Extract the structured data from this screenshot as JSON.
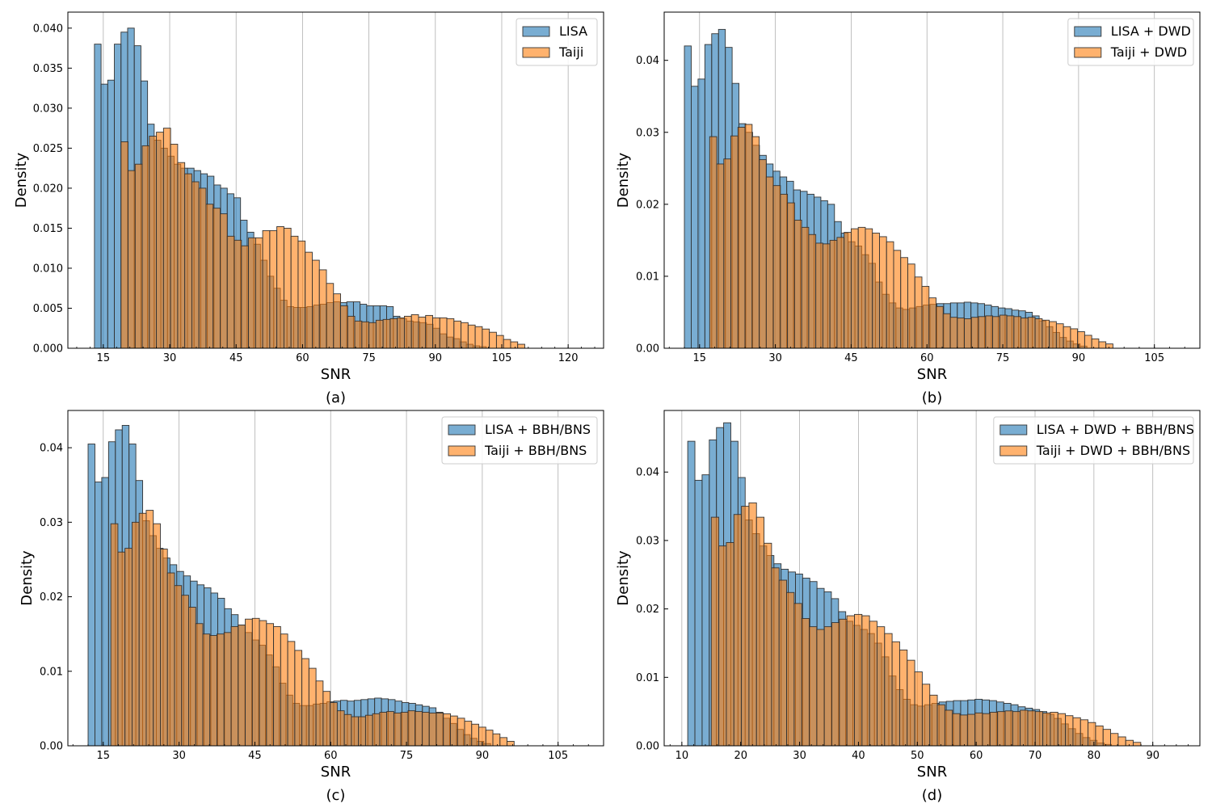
{
  "figure": {
    "series_colors": {
      "lisa": "#1f77b4",
      "taiji": "#ff7f0e",
      "bar_edge": "#333333",
      "grid": "#b0b0b0"
    }
  },
  "chart_data": [
    {
      "type": "histogram",
      "caption": "(a)",
      "xlabel": "SNR",
      "ylabel": "Density",
      "xlim": [
        7,
        128
      ],
      "ylim": [
        0,
        0.042
      ],
      "xticks": [
        15,
        30,
        45,
        60,
        75,
        90,
        105,
        120
      ],
      "yticks": [
        0,
        0.005,
        0.01,
        0.015,
        0.02,
        0.025,
        0.03,
        0.035,
        0.04
      ],
      "ytick_decimals": 3,
      "grid": "vertical",
      "legend_position": "top-right",
      "series": [
        {
          "name": "LISA",
          "bin_start": 13,
          "bin_width": 1.5,
          "values": [
            0.038,
            0.033,
            0.0335,
            0.038,
            0.0395,
            0.04,
            0.0378,
            0.0334,
            0.028,
            0.026,
            0.025,
            0.024,
            0.023,
            0.0225,
            0.0225,
            0.0222,
            0.0218,
            0.0215,
            0.0204,
            0.02,
            0.0193,
            0.0188,
            0.016,
            0.0145,
            0.013,
            0.011,
            0.009,
            0.0075,
            0.006,
            0.0052,
            0.0051,
            0.0051,
            0.0052,
            0.0054,
            0.0055,
            0.0057,
            0.0058,
            0.0057,
            0.0058,
            0.0058,
            0.0055,
            0.0053,
            0.0053,
            0.0053,
            0.0052,
            0.004,
            0.0037,
            0.0034,
            0.0033,
            0.0032,
            0.003,
            0.0025,
            0.0018,
            0.0014,
            0.0012,
            0.0008,
            0.0005,
            0.0003,
            0.0002
          ]
        },
        {
          "name": "Taiji",
          "bin_start": 19,
          "bin_width": 1.6,
          "values": [
            0.0258,
            0.0222,
            0.023,
            0.0253,
            0.0265,
            0.027,
            0.0275,
            0.0255,
            0.0232,
            0.0218,
            0.0208,
            0.02,
            0.018,
            0.0175,
            0.0168,
            0.014,
            0.0135,
            0.0128,
            0.0138,
            0.0138,
            0.0147,
            0.0147,
            0.0152,
            0.015,
            0.014,
            0.0134,
            0.012,
            0.011,
            0.0098,
            0.0081,
            0.0068,
            0.0053,
            0.004,
            0.0034,
            0.0033,
            0.0032,
            0.0035,
            0.0036,
            0.0037,
            0.0038,
            0.004,
            0.0042,
            0.0039,
            0.0041,
            0.0038,
            0.0038,
            0.0037,
            0.0034,
            0.0032,
            0.0029,
            0.0027,
            0.0024,
            0.002,
            0.0016,
            0.0011,
            0.0008,
            0.0005
          ]
        }
      ]
    },
    {
      "type": "histogram",
      "caption": "(b)",
      "xlabel": "SNR",
      "ylabel": "Density",
      "xlim": [
        8,
        114
      ],
      "ylim": [
        0,
        0.0467
      ],
      "xticks": [
        15,
        30,
        45,
        60,
        75,
        90,
        105
      ],
      "yticks": [
        0,
        0.01,
        0.02,
        0.03,
        0.04
      ],
      "ytick_decimals": 2,
      "grid": "vertical",
      "legend_position": "top-right",
      "series": [
        {
          "name": "LISA + DWD",
          "bin_start": 12,
          "bin_width": 1.35,
          "values": [
            0.042,
            0.0364,
            0.0374,
            0.0422,
            0.0437,
            0.0443,
            0.0418,
            0.0368,
            0.0312,
            0.03,
            0.0282,
            0.0268,
            0.0256,
            0.0246,
            0.0238,
            0.0232,
            0.022,
            0.0218,
            0.0214,
            0.021,
            0.0205,
            0.02,
            0.0176,
            0.016,
            0.0148,
            0.0142,
            0.013,
            0.0118,
            0.0092,
            0.0075,
            0.0063,
            0.0056,
            0.0054,
            0.0056,
            0.0058,
            0.006,
            0.0061,
            0.0062,
            0.0062,
            0.0063,
            0.0063,
            0.0064,
            0.0063,
            0.0062,
            0.006,
            0.0058,
            0.0056,
            0.0055,
            0.0053,
            0.0052,
            0.005,
            0.0045,
            0.0038,
            0.003,
            0.0022,
            0.0015,
            0.001,
            0.0006,
            0.0003
          ]
        },
        {
          "name": "Taiji + DWD",
          "bin_start": 17,
          "bin_width": 1.4,
          "values": [
            0.0294,
            0.0256,
            0.0263,
            0.0295,
            0.0307,
            0.0311,
            0.0294,
            0.0262,
            0.0238,
            0.0226,
            0.0214,
            0.0202,
            0.0178,
            0.0168,
            0.0158,
            0.0146,
            0.0145,
            0.015,
            0.0154,
            0.0161,
            0.0166,
            0.0168,
            0.0166,
            0.016,
            0.0155,
            0.0148,
            0.0136,
            0.0126,
            0.0117,
            0.0099,
            0.0086,
            0.007,
            0.0058,
            0.0048,
            0.0043,
            0.0042,
            0.0041,
            0.0043,
            0.0044,
            0.0045,
            0.0044,
            0.0046,
            0.0045,
            0.0044,
            0.0042,
            0.0043,
            0.0041,
            0.0039,
            0.0037,
            0.0034,
            0.003,
            0.0027,
            0.0023,
            0.0018,
            0.0013,
            0.0009,
            0.0006
          ]
        }
      ]
    },
    {
      "type": "histogram",
      "caption": "(c)",
      "xlabel": "SNR",
      "ylabel": "Density",
      "xlim": [
        8,
        114
      ],
      "ylim": [
        0,
        0.045
      ],
      "xticks": [
        15,
        30,
        45,
        60,
        75,
        90,
        105
      ],
      "yticks": [
        0,
        0.01,
        0.02,
        0.03,
        0.04
      ],
      "ytick_decimals": 2,
      "grid": "vertical",
      "legend_position": "top-right",
      "series": [
        {
          "name": "LISA + BBH/BNS",
          "bin_start": 12,
          "bin_width": 1.35,
          "values": [
            0.0405,
            0.0354,
            0.036,
            0.0408,
            0.0424,
            0.043,
            0.0405,
            0.0356,
            0.0302,
            0.0282,
            0.0265,
            0.0252,
            0.0243,
            0.0234,
            0.0228,
            0.0221,
            0.0216,
            0.0212,
            0.0205,
            0.0198,
            0.0184,
            0.0176,
            0.0162,
            0.0152,
            0.0142,
            0.0135,
            0.0122,
            0.0106,
            0.0084,
            0.0068,
            0.0057,
            0.0054,
            0.0054,
            0.0056,
            0.0057,
            0.0059,
            0.006,
            0.0061,
            0.006,
            0.0061,
            0.0062,
            0.0063,
            0.0064,
            0.0063,
            0.0062,
            0.006,
            0.0058,
            0.0057,
            0.0055,
            0.0053,
            0.0051,
            0.0045,
            0.0037,
            0.003,
            0.0022,
            0.0015,
            0.001,
            0.0006,
            0.0003
          ]
        },
        {
          "name": "Taiji + BBH/BNS",
          "bin_start": 16.5,
          "bin_width": 1.4,
          "values": [
            0.0298,
            0.026,
            0.0265,
            0.03,
            0.0312,
            0.0316,
            0.0298,
            0.0264,
            0.0232,
            0.0215,
            0.0202,
            0.0186,
            0.0164,
            0.015,
            0.0148,
            0.015,
            0.0152,
            0.016,
            0.0162,
            0.017,
            0.0171,
            0.0168,
            0.0164,
            0.016,
            0.015,
            0.014,
            0.0128,
            0.0117,
            0.0104,
            0.0087,
            0.0073,
            0.0058,
            0.0047,
            0.0042,
            0.0039,
            0.0039,
            0.0041,
            0.0043,
            0.0045,
            0.0046,
            0.0044,
            0.0045,
            0.0047,
            0.0046,
            0.0045,
            0.0044,
            0.0044,
            0.0043,
            0.004,
            0.0037,
            0.0033,
            0.0029,
            0.0025,
            0.0021,
            0.0016,
            0.0011,
            0.0006
          ]
        }
      ]
    },
    {
      "type": "histogram",
      "caption": "(d)",
      "xlabel": "SNR",
      "ylabel": "Density",
      "xlim": [
        7,
        98
      ],
      "ylim": [
        0,
        0.049
      ],
      "xticks": [
        10,
        20,
        30,
        40,
        50,
        60,
        70,
        80,
        90
      ],
      "yticks": [
        0,
        0.01,
        0.02,
        0.03,
        0.04
      ],
      "ytick_decimals": 2,
      "grid": "vertical",
      "legend_position": "top-right",
      "series": [
        {
          "name": "LISA + DWD + BBH/BNS",
          "bin_start": 11,
          "bin_width": 1.22,
          "values": [
            0.0445,
            0.0388,
            0.0396,
            0.0447,
            0.0465,
            0.0472,
            0.0445,
            0.0392,
            0.033,
            0.031,
            0.0292,
            0.0278,
            0.0266,
            0.0258,
            0.0254,
            0.0251,
            0.0245,
            0.024,
            0.023,
            0.0225,
            0.0215,
            0.0196,
            0.0182,
            0.0176,
            0.017,
            0.0164,
            0.015,
            0.013,
            0.0102,
            0.0082,
            0.0068,
            0.006,
            0.0058,
            0.006,
            0.0062,
            0.0064,
            0.0065,
            0.0066,
            0.0066,
            0.0067,
            0.0068,
            0.0067,
            0.0066,
            0.0064,
            0.0062,
            0.006,
            0.0057,
            0.0055,
            0.0053,
            0.005,
            0.0046,
            0.004,
            0.0032,
            0.0025,
            0.0018,
            0.0012,
            0.0008,
            0.0004,
            0.0002
          ]
        },
        {
          "name": "Taiji + DWD + BBH/BNS",
          "bin_start": 15,
          "bin_width": 1.28,
          "values": [
            0.0334,
            0.0292,
            0.0297,
            0.0338,
            0.035,
            0.0355,
            0.0334,
            0.0296,
            0.026,
            0.0242,
            0.0224,
            0.0208,
            0.0186,
            0.0174,
            0.017,
            0.0174,
            0.018,
            0.0185,
            0.019,
            0.0192,
            0.019,
            0.0182,
            0.0174,
            0.0164,
            0.0152,
            0.014,
            0.0125,
            0.0108,
            0.009,
            0.0074,
            0.006,
            0.0052,
            0.0047,
            0.0045,
            0.0046,
            0.0048,
            0.0047,
            0.0049,
            0.005,
            0.0051,
            0.005,
            0.0052,
            0.0051,
            0.005,
            0.0048,
            0.0049,
            0.0047,
            0.0044,
            0.0041,
            0.0038,
            0.0034,
            0.0029,
            0.0024,
            0.0018,
            0.0013,
            0.0008,
            0.0005
          ]
        }
      ]
    }
  ]
}
